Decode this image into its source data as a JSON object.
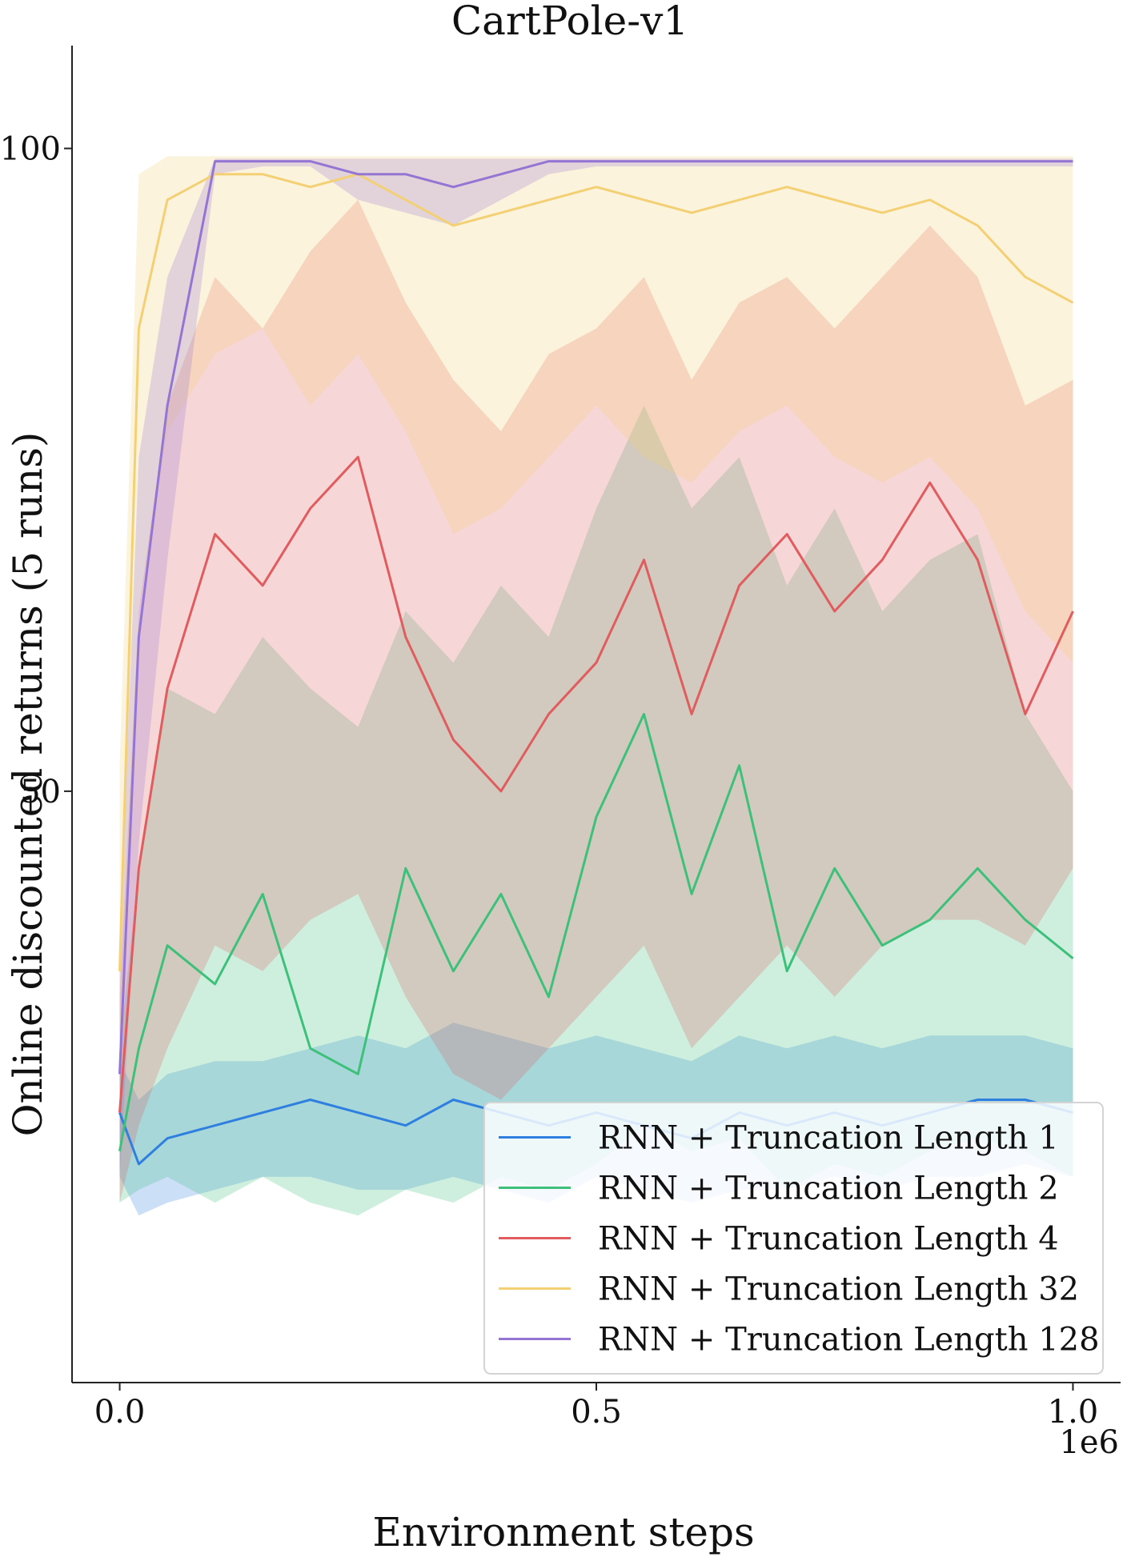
{
  "chart_data": {
    "type": "line",
    "title": "CartPole-v1",
    "xlabel": "Environment steps",
    "ylabel": "Online discounted returns (5 runs)",
    "x_offset_label": "1e6",
    "xlim": [
      -0.05,
      1.05
    ],
    "ylim": [
      4,
      108
    ],
    "x_ticks": [
      {
        "value": 0.0,
        "label": "0.0"
      },
      {
        "value": 0.5,
        "label": "0.5"
      },
      {
        "value": 1.0,
        "label": "1.0"
      }
    ],
    "y_ticks": [
      {
        "value": 50,
        "label": "50"
      },
      {
        "value": 100,
        "label": "100"
      }
    ],
    "grid": false,
    "legend": "bottom-right",
    "x": [
      0.0,
      0.02,
      0.05,
      0.1,
      0.15,
      0.2,
      0.25,
      0.3,
      0.35,
      0.4,
      0.45,
      0.5,
      0.55,
      0.6,
      0.65,
      0.7,
      0.75,
      0.8,
      0.85,
      0.9,
      0.95,
      1.0
    ],
    "series": [
      {
        "name": "RNN + Truncation Length 1",
        "color": "#2f7fe0",
        "values": [
          25,
          21,
          23,
          24,
          25,
          26,
          25,
          24,
          26,
          25,
          24,
          25,
          24,
          23,
          25,
          24,
          25,
          24,
          25,
          26,
          26,
          25
        ],
        "lower": [
          20,
          17,
          18,
          19,
          20,
          20,
          19,
          19,
          20,
          19,
          18,
          20,
          19,
          18,
          19,
          19,
          20,
          19,
          20,
          20,
          21,
          20
        ],
        "upper": [
          29,
          26,
          28,
          29,
          29,
          30,
          31,
          30,
          32,
          31,
          30,
          31,
          30,
          29,
          31,
          30,
          31,
          30,
          31,
          31,
          31,
          30
        ]
      },
      {
        "name": "RNN + Truncation Length 2",
        "color": "#3dc17a",
        "values": [
          22,
          30,
          38,
          35,
          42,
          30,
          28,
          44,
          36,
          42,
          34,
          48,
          56,
          42,
          52,
          36,
          44,
          38,
          40,
          44,
          40,
          37
        ],
        "lower": [
          18,
          19,
          20,
          18,
          20,
          18,
          17,
          19,
          18,
          20,
          19,
          21,
          24,
          22,
          23,
          19,
          21,
          20,
          22,
          23,
          22,
          20
        ],
        "upper": [
          30,
          44,
          58,
          56,
          62,
          58,
          55,
          64,
          60,
          66,
          62,
          72,
          80,
          72,
          76,
          66,
          72,
          64,
          68,
          70,
          56,
          50
        ]
      },
      {
        "name": "RNN + Truncation Length 4",
        "color": "#e05c5e",
        "values": [
          25,
          44,
          58,
          70,
          66,
          72,
          76,
          62,
          54,
          50,
          56,
          60,
          68,
          56,
          66,
          70,
          64,
          68,
          74,
          68,
          56,
          64
        ],
        "lower": [
          18,
          24,
          30,
          38,
          36,
          40,
          42,
          34,
          28,
          26,
          30,
          34,
          38,
          30,
          34,
          38,
          34,
          38,
          40,
          40,
          38,
          44
        ],
        "upper": [
          34,
          64,
          80,
          90,
          86,
          92,
          96,
          88,
          82,
          78,
          84,
          86,
          90,
          82,
          88,
          90,
          86,
          90,
          94,
          90,
          80,
          82
        ]
      },
      {
        "name": "RNN + Truncation Length 32",
        "color": "#f3d074",
        "values": [
          36,
          86,
          96,
          98,
          98,
          97,
          98,
          96,
          94,
          95,
          96,
          97,
          96,
          95,
          96,
          97,
          96,
          95,
          96,
          94,
          90,
          88
        ],
        "lower": [
          24,
          64,
          78,
          84,
          86,
          80,
          84,
          78,
          70,
          72,
          76,
          80,
          76,
          74,
          78,
          80,
          76,
          74,
          76,
          72,
          64,
          60
        ],
        "upper": [
          52,
          98,
          99.4,
          99.4,
          99.4,
          99.4,
          99.4,
          99.4,
          99.4,
          99.4,
          99.4,
          99.4,
          99.4,
          99.4,
          99.4,
          99.4,
          99.4,
          99.4,
          99.4,
          99.4,
          99.4,
          99.4
        ]
      },
      {
        "name": "RNN + Truncation Length 128",
        "color": "#9575d4",
        "values": [
          28,
          62,
          80,
          99,
          99,
          99,
          98,
          98,
          97,
          98,
          99,
          99,
          99,
          99,
          99,
          99,
          99,
          99,
          99,
          99,
          99,
          99
        ],
        "lower": [
          20,
          46,
          68,
          98,
          98.6,
          98.6,
          96,
          95,
          94,
          96,
          98,
          98.6,
          98.6,
          98.6,
          98.6,
          98.6,
          98.6,
          98.6,
          98.6,
          98.6,
          98.6,
          98.6
        ],
        "upper": [
          38,
          76,
          90,
          99.2,
          99.2,
          99.2,
          99.2,
          99.2,
          99.2,
          99.2,
          99.2,
          99.2,
          99.2,
          99.2,
          99.2,
          99.2,
          99.2,
          99.2,
          99.2,
          99.2,
          99.2,
          99.2
        ]
      }
    ]
  }
}
